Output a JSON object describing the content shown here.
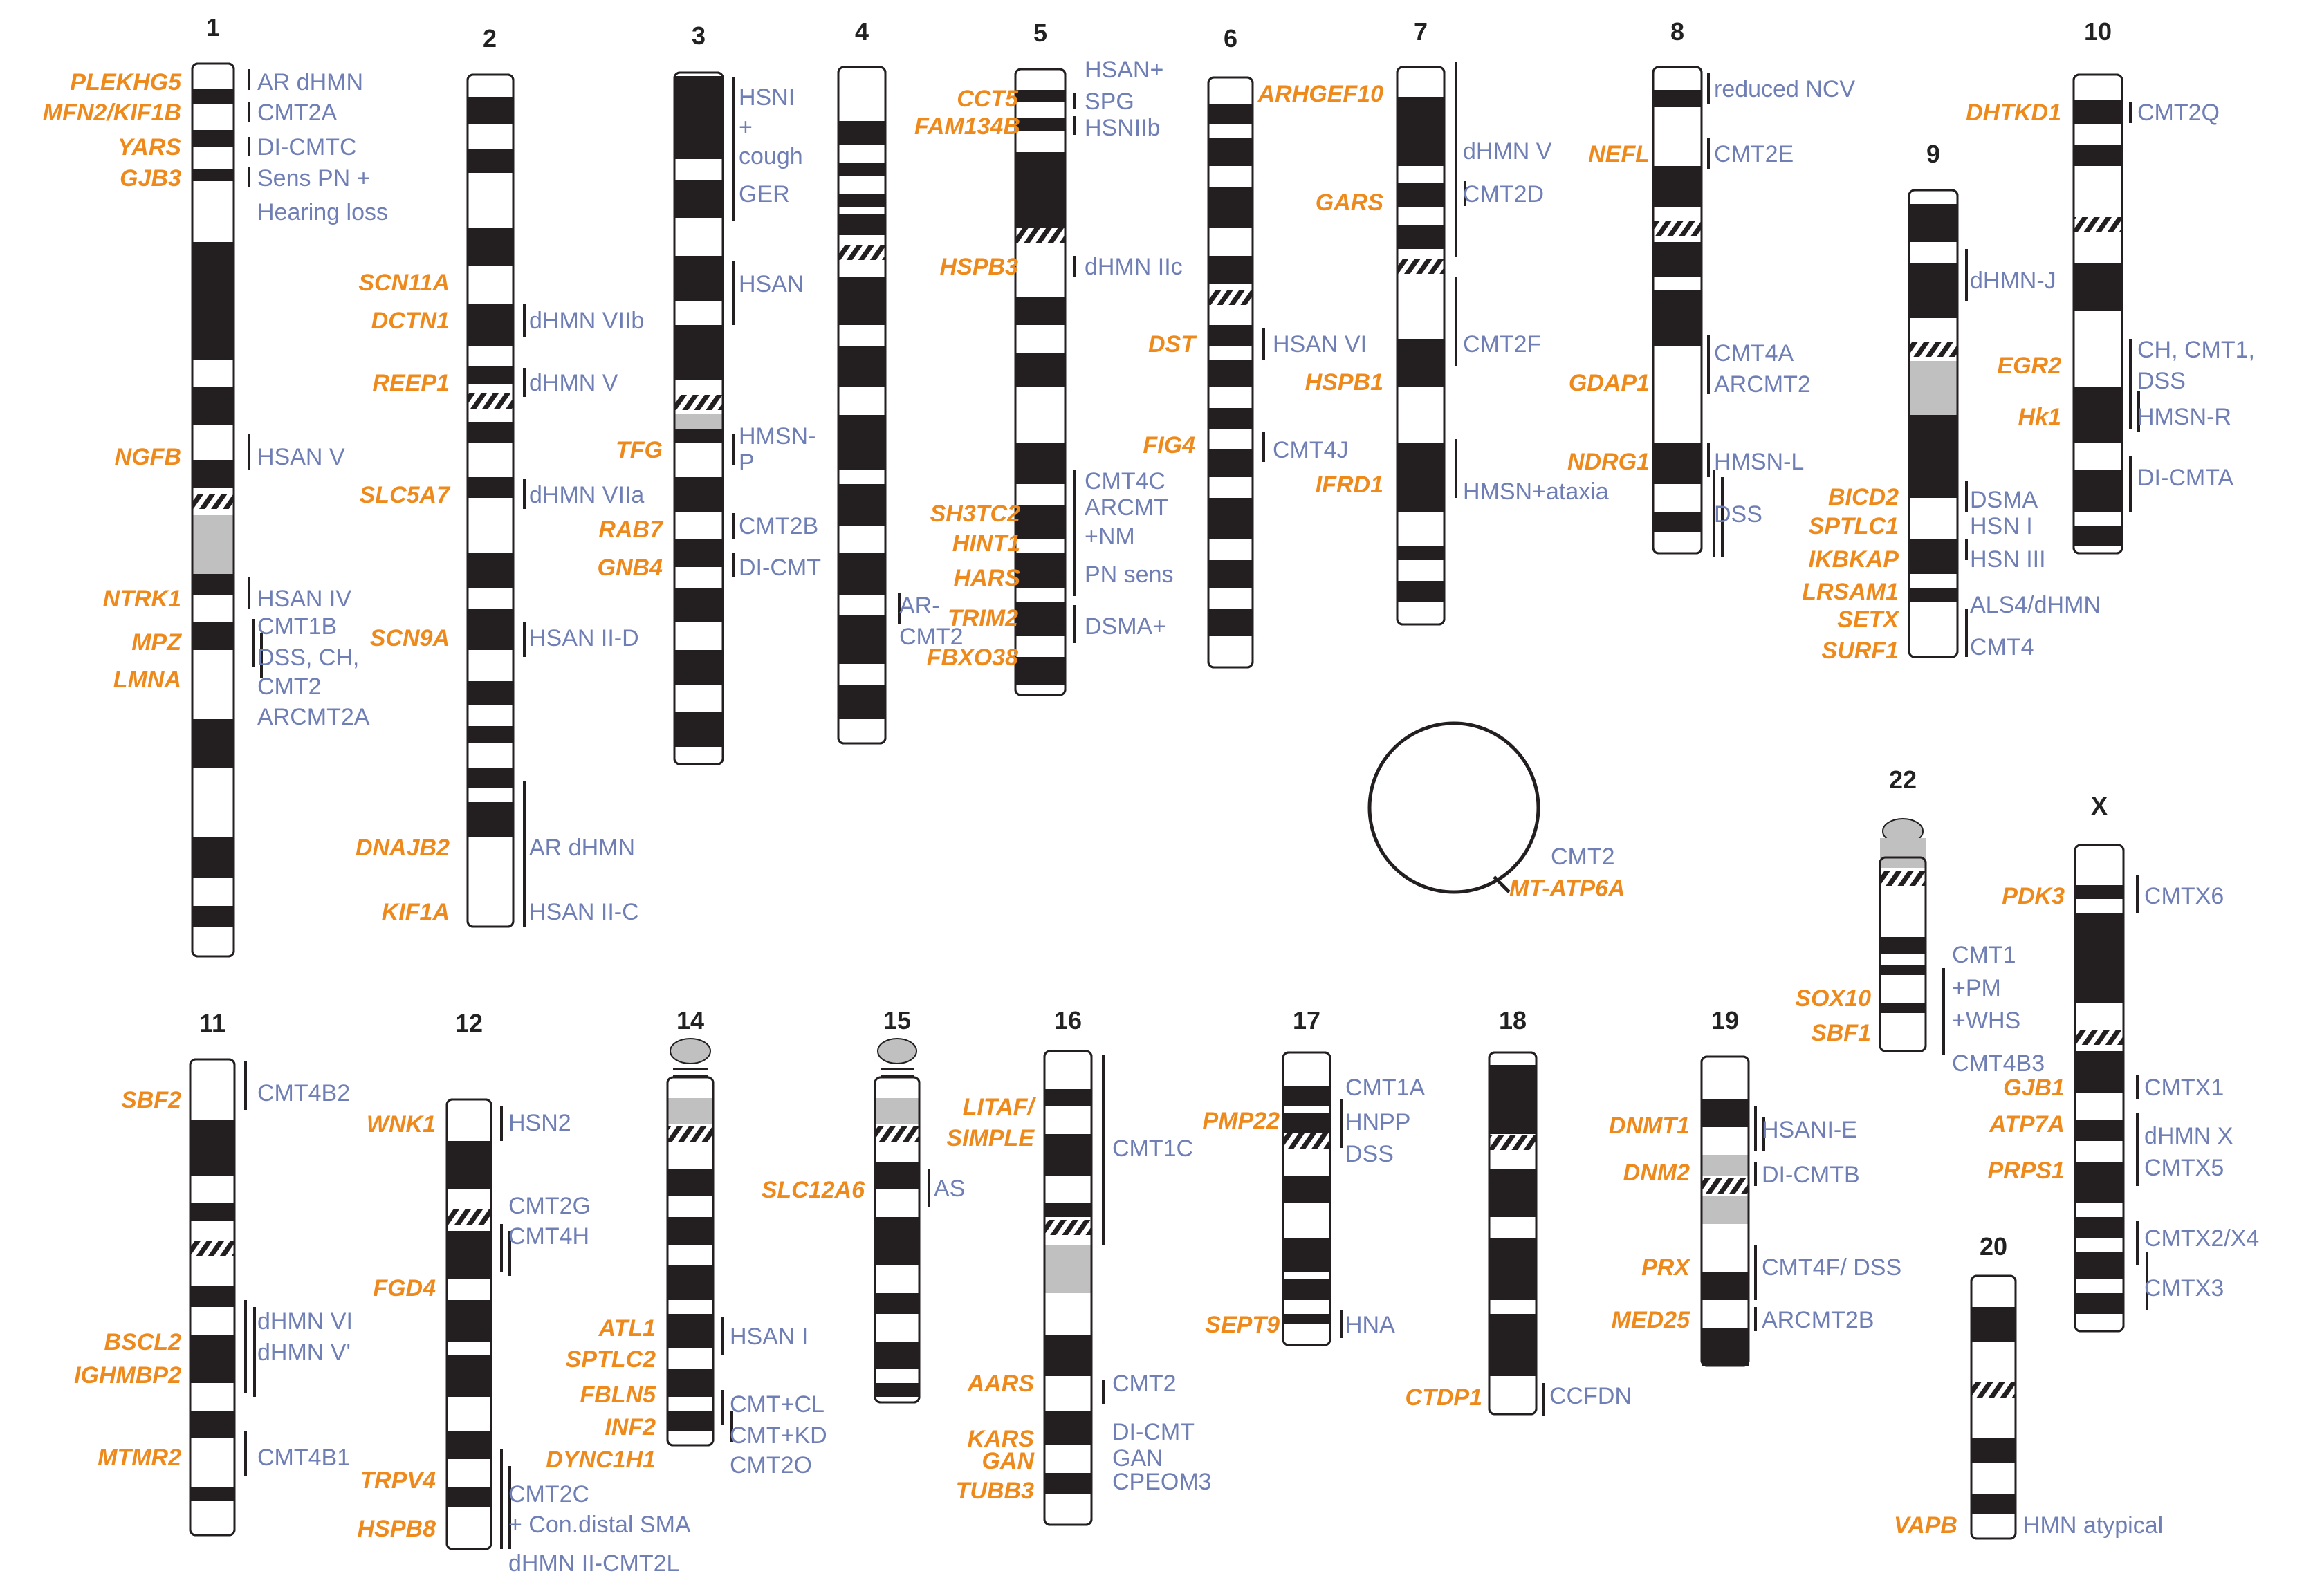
{
  "colors": {
    "gene": "#ee8a1c",
    "disease": "#6f7fb5",
    "band": "#231f20",
    "centromere": "#c0c0c0",
    "outline": "#231f20"
  },
  "mito": {
    "disease": "CMT2",
    "gene": "MT-ATP6A"
  },
  "chromosomes": [
    {
      "n": "1",
      "genes": [
        {
          "g": "PLEKHG5",
          "d": [
            "AR dHMN"
          ]
        },
        {
          "g": "MFN2/KIF1B",
          "d": [
            "CMT2A"
          ]
        },
        {
          "g": "YARS",
          "d": [
            "DI-CMTC"
          ]
        },
        {
          "g": "GJB3",
          "d": [
            "Sens PN +",
            "Hearing loss"
          ]
        },
        {
          "g": "NGFB",
          "d": [
            "HSAN V"
          ]
        },
        {
          "g": "NTRK1",
          "d": [
            "HSAN IV"
          ]
        },
        {
          "g": "MPZ",
          "d": [
            "CMT1B"
          ]
        },
        {
          "g": "LMNA",
          "d": [
            "DSS, CH,",
            "CMT2",
            "ARCMT2A"
          ]
        }
      ]
    },
    {
      "n": "2",
      "genes": [
        {
          "g": "SCN11A",
          "d": []
        },
        {
          "g": "DCTN1",
          "d": [
            "dHMN VIIb"
          ]
        },
        {
          "g": "REEP1",
          "d": [
            "dHMN V"
          ]
        },
        {
          "g": "SLC5A7",
          "d": [
            "dHMN VIIa"
          ]
        },
        {
          "g": "SCN9A",
          "d": [
            "HSAN II-D"
          ]
        },
        {
          "g": "DNAJB2",
          "d": [
            "AR dHMN"
          ]
        },
        {
          "g": "KIF1A",
          "d": [
            "HSAN II-C"
          ]
        }
      ]
    },
    {
      "n": "3",
      "genes": [
        {
          "g": "",
          "d": [
            "HSNI",
            "+",
            "cough",
            "GER"
          ]
        },
        {
          "g": "",
          "d": [
            "HSAN"
          ]
        },
        {
          "g": "TFG",
          "d": [
            "HMSN-",
            "P"
          ]
        },
        {
          "g": "RAB7",
          "d": [
            "CMT2B"
          ]
        },
        {
          "g": "GNB4",
          "d": [
            "DI-CMT"
          ]
        }
      ]
    },
    {
      "n": "4",
      "genes": [
        {
          "g": "FAM134B",
          "d": []
        },
        {
          "g": "SH3TC2",
          "d": []
        },
        {
          "g": "HINT1",
          "d": []
        },
        {
          "g": "HARS",
          "d": [
            "AR-",
            "CMT2"
          ]
        }
      ]
    },
    {
      "n": "5",
      "genes": [
        {
          "g": "CCT5",
          "d": [
            "HSAN+",
            "SPG"
          ]
        },
        {
          "g": "",
          "d": [
            "HSNIIb"
          ]
        },
        {
          "g": "HSPB3",
          "d": [
            "dHMN IIc"
          ]
        },
        {
          "g": "TRIM2",
          "d": []
        },
        {
          "g": "FBXO38",
          "d": [
            "DSMA+"
          ]
        },
        {
          "g": "",
          "d": [
            "CMT4C",
            "ARCMT",
            "+NM",
            "PN sens"
          ]
        }
      ]
    },
    {
      "n": "6",
      "genes": [
        {
          "g": "DST",
          "d": [
            "HSAN VI"
          ]
        },
        {
          "g": "FIG4",
          "d": [
            "CMT4J"
          ]
        }
      ]
    },
    {
      "n": "7",
      "genes": [
        {
          "g": "ARHGEF10",
          "d": []
        },
        {
          "g": "GARS",
          "d": [
            "dHMN V",
            "CMT2D"
          ]
        },
        {
          "g": "HSPB1",
          "d": [
            "CMT2F"
          ]
        },
        {
          "g": "IFRD1",
          "d": [
            "HMSN+ataxia"
          ]
        }
      ]
    },
    {
      "n": "8",
      "genes": [
        {
          "g": "NEFL",
          "d": [
            "reduced NCV",
            "CMT2E"
          ]
        },
        {
          "g": "GDAP1",
          "d": [
            "CMT4A",
            "ARCMT2"
          ]
        },
        {
          "g": "NDRG1",
          "d": [
            "HMSN-L"
          ]
        },
        {
          "g": "",
          "d": [
            "DSS"
          ]
        }
      ]
    },
    {
      "n": "9",
      "genes": [
        {
          "g": "",
          "d": [
            "dHMN-J"
          ]
        },
        {
          "g": "BICD2",
          "d": [
            "DSMA"
          ]
        },
        {
          "g": "SPTLC1",
          "d": [
            "HSN I"
          ]
        },
        {
          "g": "IKBKAP",
          "d": [
            "HSN III"
          ]
        },
        {
          "g": "LRSAM1",
          "d": [
            "ALS4/dHMN"
          ]
        },
        {
          "g": "SETX",
          "d": []
        },
        {
          "g": "SURF1",
          "d": [
            "CMT4"
          ]
        }
      ]
    },
    {
      "n": "10",
      "genes": [
        {
          "g": "DHTKD1",
          "d": [
            "CMT2Q"
          ]
        },
        {
          "g": "EGR2",
          "d": [
            "CH, CMT1,",
            "DSS"
          ]
        },
        {
          "g": "Hk1",
          "d": [
            "HMSN-R"
          ]
        },
        {
          "g": "",
          "d": [
            "DI-CMTA"
          ]
        }
      ]
    },
    {
      "n": "11",
      "genes": [
        {
          "g": "SBF2",
          "d": [
            "CMT4B2"
          ]
        },
        {
          "g": "BSCL2",
          "d": [
            "dHMN VI"
          ]
        },
        {
          "g": "IGHMBP2",
          "d": [
            "dHMN V'"
          ]
        },
        {
          "g": "MTMR2",
          "d": [
            "CMT4B1"
          ]
        }
      ]
    },
    {
      "n": "12",
      "genes": [
        {
          "g": "WNK1",
          "d": [
            "HSN2"
          ]
        },
        {
          "g": "FGD4",
          "d": [
            "CMT2G",
            "CMT4H"
          ]
        },
        {
          "g": "TRPV4",
          "d": [
            "CMT2C",
            "+ Con.distal SMA"
          ]
        },
        {
          "g": "HSPB8",
          "d": [
            "dHMN II-CMT2L"
          ]
        }
      ]
    },
    {
      "n": "14",
      "genes": [
        {
          "g": "ATL1",
          "d": [
            "HSAN I"
          ]
        },
        {
          "g": "SPTLC2",
          "d": []
        },
        {
          "g": "FBLN5",
          "d": [
            "CMT+CL"
          ]
        },
        {
          "g": "INF2",
          "d": [
            "CMT+KD"
          ]
        },
        {
          "g": "DYNC1H1",
          "d": [
            "CMT2O"
          ]
        }
      ]
    },
    {
      "n": "15",
      "genes": [
        {
          "g": "SLC12A6",
          "d": [
            "AS"
          ]
        }
      ]
    },
    {
      "n": "16",
      "genes": [
        {
          "g": "LITAF/",
          "d": []
        },
        {
          "g": "SIMPLE",
          "d": [
            "CMT1C"
          ]
        },
        {
          "g": "AARS",
          "d": [
            "CMT2"
          ]
        },
        {
          "g": "KARS",
          "d": [
            "DI-CMT"
          ]
        },
        {
          "g": "GAN",
          "d": [
            "GAN"
          ]
        },
        {
          "g": "TUBB3",
          "d": [
            "CPEOM3"
          ]
        }
      ]
    },
    {
      "n": "17",
      "genes": [
        {
          "g": "PMP22",
          "d": [
            "CMT1A",
            "HNPP",
            "DSS"
          ]
        },
        {
          "g": "SEPT9",
          "d": [
            "HNA"
          ]
        }
      ]
    },
    {
      "n": "18",
      "genes": [
        {
          "g": "CTDP1",
          "d": [
            "CCFDN"
          ]
        }
      ]
    },
    {
      "n": "19",
      "genes": [
        {
          "g": "DNMT1",
          "d": [
            "HSANI-E"
          ]
        },
        {
          "g": "DNM2",
          "d": [
            "DI-CMTB"
          ]
        },
        {
          "g": "PRX",
          "d": [
            "CMT4F/ DSS"
          ]
        },
        {
          "g": "MED25",
          "d": [
            "ARCMT2B"
          ]
        }
      ]
    },
    {
      "n": "20",
      "genes": [
        {
          "g": "VAPB",
          "d": [
            "HMN atypical"
          ]
        }
      ]
    },
    {
      "n": "22",
      "genes": [
        {
          "g": "SOX10",
          "d": [
            "CMT1",
            "+PM",
            "+WHS"
          ]
        },
        {
          "g": "SBF1",
          "d": [
            "CMT4B3"
          ]
        }
      ]
    },
    {
      "n": "X",
      "genes": [
        {
          "g": "PDK3",
          "d": [
            "CMTX6"
          ]
        },
        {
          "g": "GJB1",
          "d": [
            "CMTX1"
          ]
        },
        {
          "g": "ATP7A",
          "d": [
            "dHMN X"
          ]
        },
        {
          "g": "PRPS1",
          "d": [
            "CMTX5"
          ]
        },
        {
          "g": "",
          "d": [
            "CMTX2/X4"
          ]
        },
        {
          "g": "",
          "d": [
            "CMTX3"
          ]
        }
      ]
    }
  ]
}
